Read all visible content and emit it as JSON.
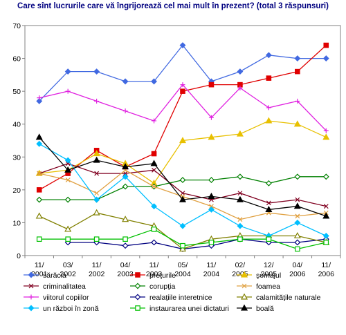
{
  "chart_data": {
    "type": "line",
    "title": "Care sînt lucrurile care vă îngrijorează cel mai mult în prezent? (total 3 răspunsuri)",
    "xlabel": "",
    "ylabel": "",
    "ylim": [
      0,
      70
    ],
    "yticks": [
      0,
      10,
      20,
      30,
      40,
      50,
      60,
      70
    ],
    "grid": false,
    "legend": "bottom",
    "categories": [
      [
        "11/",
        "2001"
      ],
      [
        "03/",
        "2002"
      ],
      [
        "11/",
        "2002"
      ],
      [
        "04/",
        "2003"
      ],
      [
        "11/",
        "2003"
      ],
      [
        "05/",
        "2004"
      ],
      [
        "11/",
        "2004"
      ],
      [
        "02/",
        "2005"
      ],
      [
        "12/",
        "2005"
      ],
      [
        "04/",
        "2006"
      ],
      [
        "11/",
        "2006"
      ]
    ],
    "series": [
      {
        "name": "sărăcia",
        "color": "#4169E1",
        "marker": "diamond",
        "values": [
          47,
          56,
          56,
          53,
          53,
          64,
          53,
          56,
          61,
          60,
          60
        ]
      },
      {
        "name": "preţurile",
        "color": "#E00000",
        "marker": "square",
        "values": [
          20,
          25,
          32,
          27,
          31,
          50,
          52,
          52,
          54,
          56,
          64
        ]
      },
      {
        "name": "şomajul",
        "color": "#E8C000",
        "marker": "triangle",
        "values": [
          25,
          26,
          31,
          28,
          22,
          35,
          36,
          37,
          41,
          40,
          36
        ]
      },
      {
        "name": "criminalitatea",
        "color": "#800020",
        "marker": "x",
        "values": [
          25,
          28,
          25,
          25,
          26,
          19,
          17,
          19,
          16,
          17,
          15
        ]
      },
      {
        "name": "corupţia",
        "color": "#008000",
        "marker": "diamond-open",
        "values": [
          17,
          17,
          17,
          21,
          21,
          23,
          23,
          24,
          22,
          24,
          24
        ]
      },
      {
        "name": "foamea",
        "color": "#E0A040",
        "marker": "x",
        "values": [
          25,
          23,
          19,
          26,
          21,
          18,
          15,
          11,
          13,
          12,
          13
        ]
      },
      {
        "name": "viitorul copiilor",
        "color": "#E020E0",
        "marker": "plus",
        "values": [
          48,
          50,
          47,
          44,
          41,
          52,
          42,
          51,
          45,
          47,
          38
        ]
      },
      {
        "name": "realaţiile interetnice",
        "color": "#000080",
        "marker": "diamond-open",
        "values": [
          null,
          4,
          4,
          3,
          4,
          2,
          3,
          5,
          4,
          4,
          5
        ]
      },
      {
        "name": "calamităţile naturale",
        "color": "#808000",
        "marker": "triangle-open",
        "values": [
          12,
          8,
          13,
          11,
          9,
          2,
          5,
          6,
          6,
          6,
          4
        ]
      },
      {
        "name": "un război în zonă",
        "color": "#00BFFF",
        "marker": "diamond",
        "values": [
          34,
          29,
          17,
          24,
          15,
          9,
          14,
          9,
          6,
          10,
          6
        ]
      },
      {
        "name": "instaurarea unei dictaturi",
        "color": "#00C000",
        "marker": "square-open",
        "values": [
          5,
          5,
          5,
          5,
          8,
          3,
          4,
          5,
          5,
          2,
          4
        ]
      },
      {
        "name": "boală",
        "color": "#000000",
        "marker": "triangle",
        "values": [
          36,
          26,
          29,
          27,
          28,
          17,
          18,
          17,
          14,
          15,
          12
        ]
      }
    ]
  }
}
